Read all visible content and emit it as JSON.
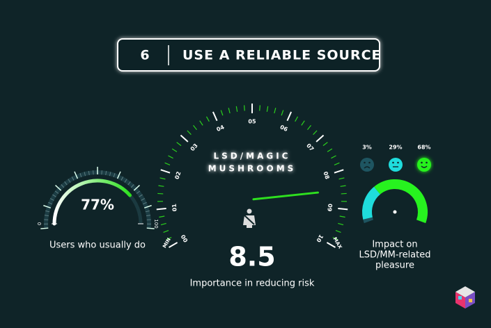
{
  "header": {
    "number": "6",
    "title": "USE A RELIABLE SOURCE"
  },
  "users_gauge": {
    "value": 77,
    "value_label": "77%",
    "lim": [
      0,
      100
    ],
    "ticks": [
      0,
      100
    ],
    "caption": "Users who usually do"
  },
  "importance_gauge": {
    "title_lines": [
      "LSD/MAGIC",
      "MUSHROOMS"
    ],
    "lim": [
      0,
      10
    ],
    "ticks": [
      {
        "value": 0,
        "label": "00"
      },
      {
        "value": 1,
        "label": "01"
      },
      {
        "value": 2,
        "label": "02"
      },
      {
        "value": 3,
        "label": "03"
      },
      {
        "value": 4,
        "label": "04"
      },
      {
        "value": 5,
        "label": "05"
      },
      {
        "value": 6,
        "label": "06"
      },
      {
        "value": 7,
        "label": "07"
      },
      {
        "value": 8,
        "label": "08"
      },
      {
        "value": 9,
        "label": "09"
      },
      {
        "value": 10,
        "label": "10"
      }
    ],
    "min_label": "MIN",
    "max_label": "MAX",
    "value": 8.5,
    "caption": "Importance in reducing risk"
  },
  "pleasure_gauge": {
    "values": [
      3,
      29,
      68
    ],
    "value_labels": [
      "3%",
      "29%",
      "68%"
    ],
    "colors": [
      "#1e5561",
      "#1fdcdc",
      "#27f21f"
    ],
    "caption_lines": [
      "Impact on",
      "LSD/MM-related",
      "pleasure"
    ]
  }
}
